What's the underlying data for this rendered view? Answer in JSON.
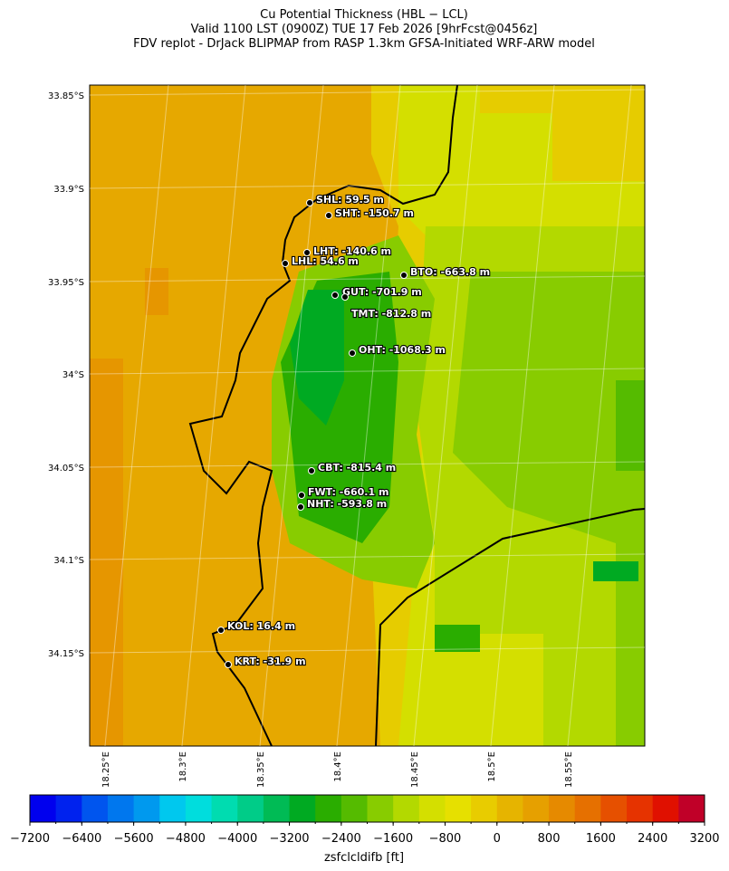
{
  "header": {
    "title": [
      "Cu Potential Thickness (HBL − LCL)",
      "Valid 1100 LST (0900Z) TUE 17 Feb 2026 [9hrFcst@0456z]",
      "FDV replot - DrJack BLIPMAP from RASP 1.3km GFSA-Initiated WRF-ARW model"
    ]
  },
  "map": {
    "lat_labels": [
      "33.85°S",
      "33.9°S",
      "33.95°S",
      "34°S",
      "34.05°S",
      "34.1°S",
      "34.15°S"
    ],
    "lon_labels": [
      "18.25°E",
      "18.3°E",
      "18.35°E",
      "18.4°E",
      "18.45°E",
      "18.5°E",
      "18.55°E"
    ],
    "stations": [
      "SHL: 59.5 m",
      "SHT: -150.7 m",
      "LHT: -140.6 m",
      "LHL: 54.6 m",
      "BTO: -663.8 m",
      "GUT: -701.9 m",
      "TMT: -812.8 m",
      "OHT: -1068.3 m",
      "CBT: -815.4 m",
      "FWT: -660.1 m",
      "NHT: -593.8 m",
      "KOL: 16.4 m",
      "KRT: -31.9 m"
    ]
  },
  "colorbar": {
    "lim": [
      -7200,
      3200
    ],
    "ticks": [
      {
        "value": -7200,
        "label": "−7200"
      },
      {
        "value": -6400,
        "label": "−6400"
      },
      {
        "value": -5600,
        "label": "−5600"
      },
      {
        "value": -4800,
        "label": "−4800"
      },
      {
        "value": -4000,
        "label": "−4000"
      },
      {
        "value": -3200,
        "label": "−3200"
      },
      {
        "value": -2400,
        "label": "−2400"
      },
      {
        "value": -1600,
        "label": "−1600"
      },
      {
        "value": -800,
        "label": "−800"
      },
      0,
      800,
      1600,
      2400,
      3200
    ],
    "colors": [
      "#0000ee",
      "#0022ee",
      "#0055ee",
      "#0077ee",
      "#0099ee",
      "#00c8ee",
      "#00dddd",
      "#00dcb0",
      "#00cc88",
      "#00bb55",
      "#00aa22",
      "#2aad00",
      "#55bb00",
      "#88cc00",
      "#b3d900",
      "#d4df00",
      "#e6e000",
      "#e8cc00",
      "#e6b400",
      "#e6a000",
      "#e68a00",
      "#e67000",
      "#e65000",
      "#e63300",
      "#e01000",
      "#c00028"
    ],
    "label": "zsfclcldifb [ft]"
  }
}
